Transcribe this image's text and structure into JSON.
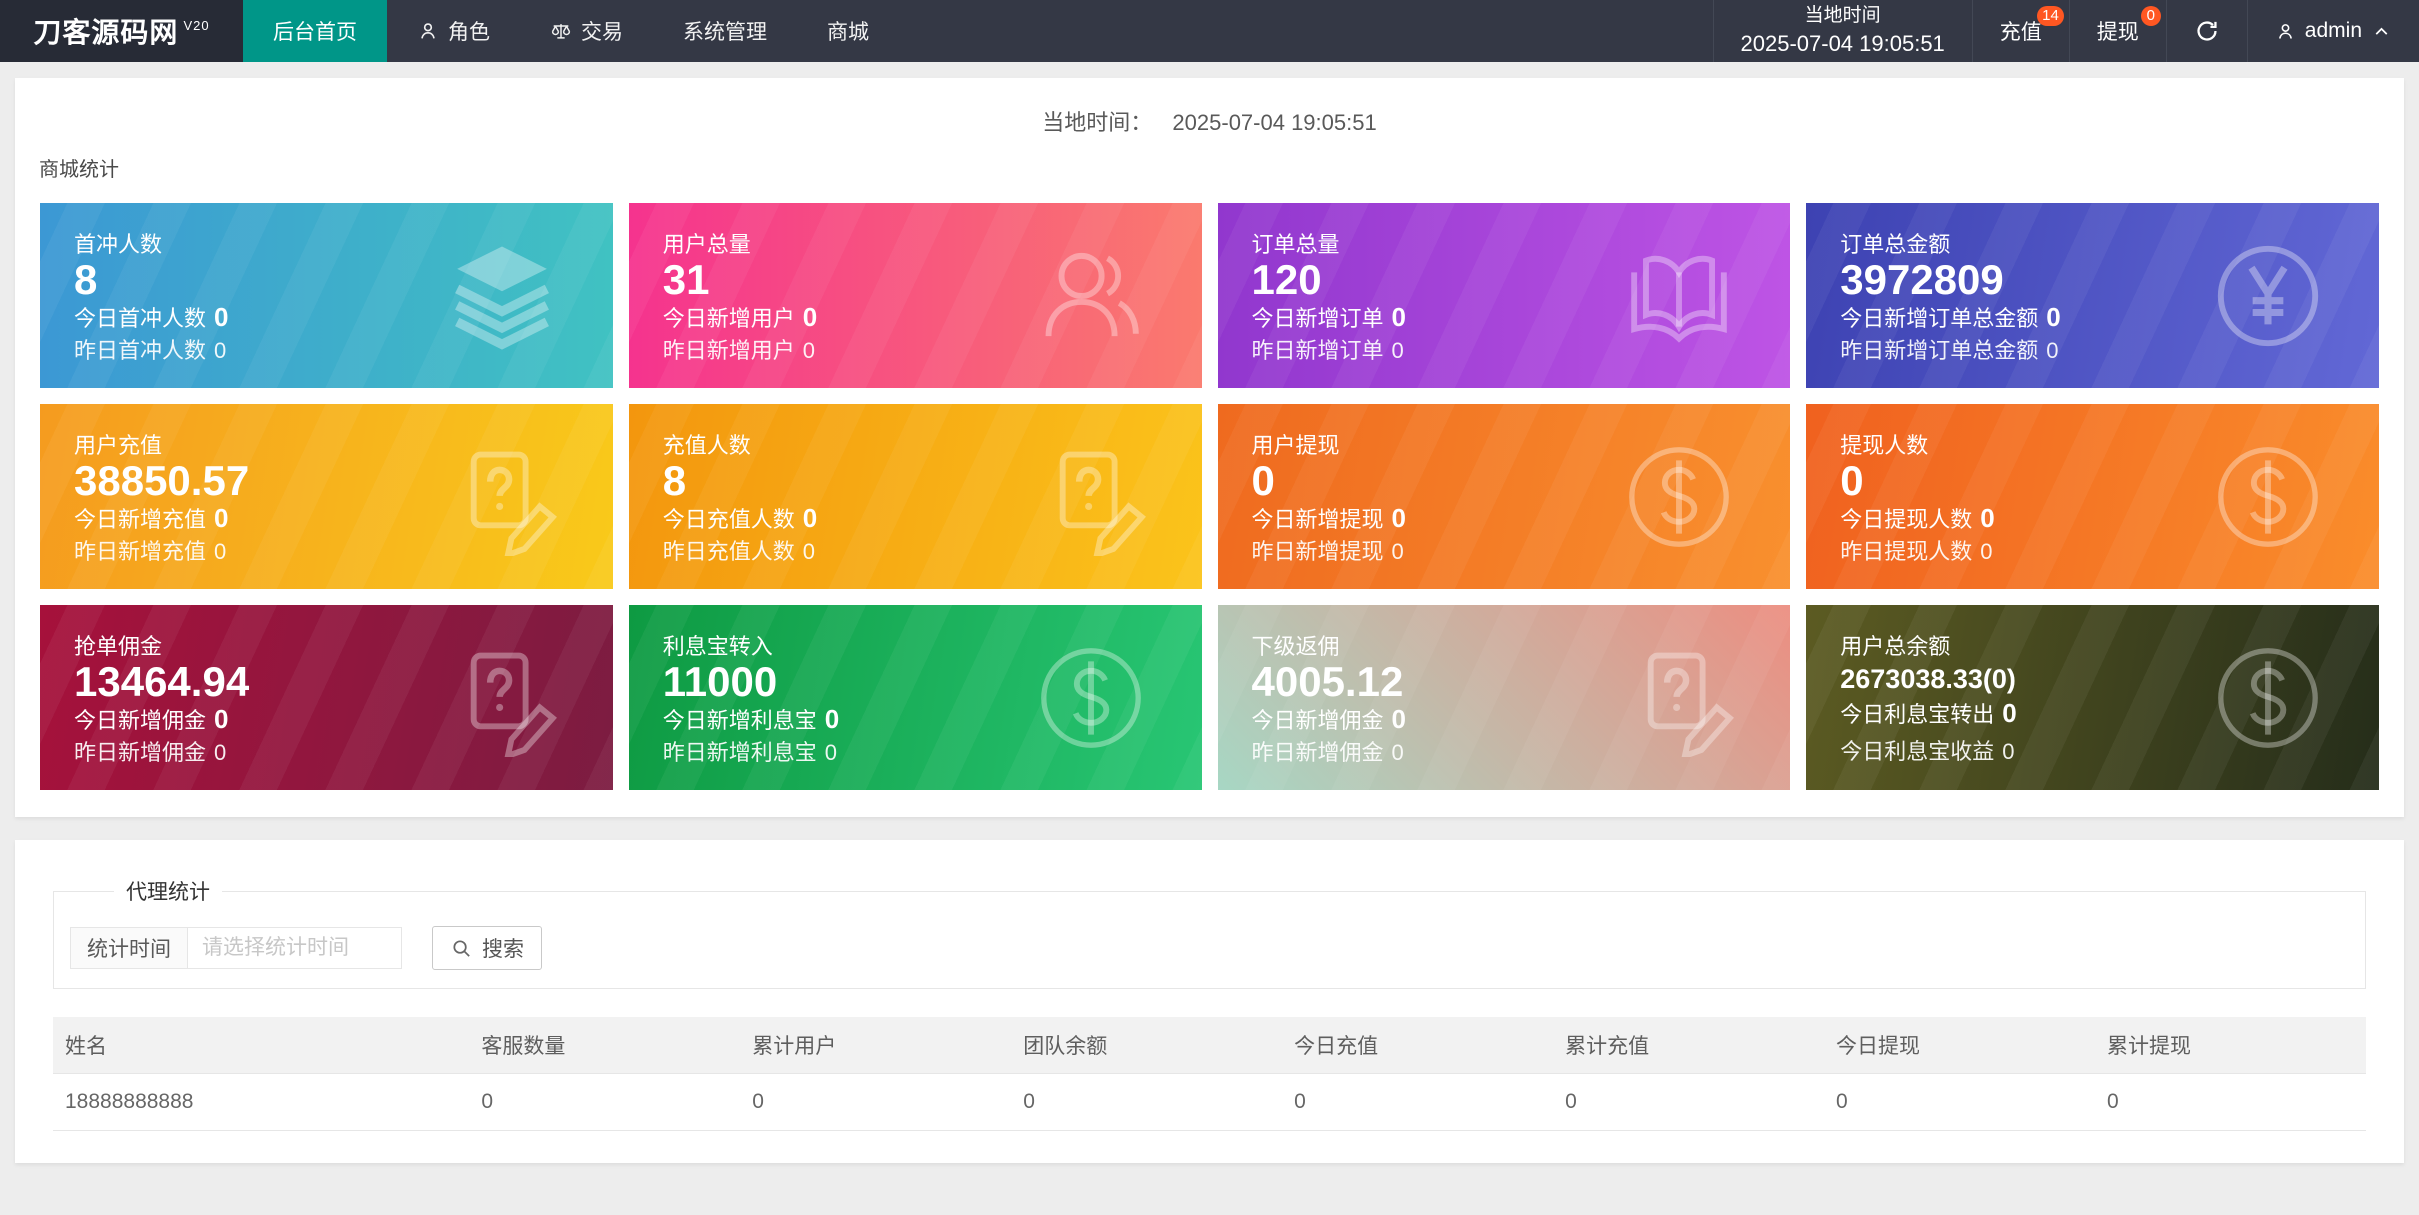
{
  "theme": {
    "accent": "#009688",
    "badge": "#FF5722",
    "navbar_bg": "#343845",
    "logo_bg": "#272B36",
    "page_bg": "#EDEDED"
  },
  "navbar": {
    "logo": "刀客源码网",
    "logo_version": "V20",
    "menu": [
      {
        "label": "后台首页",
        "active": true
      },
      {
        "label": "角色",
        "icon": "person-icon"
      },
      {
        "label": "交易",
        "icon": "scales-icon"
      },
      {
        "label": "系统管理"
      },
      {
        "label": "商城"
      }
    ],
    "local_time_label": "当地时间",
    "local_time_value": "2025-07-04 19:05:51",
    "recharge_label": "充值",
    "recharge_badge": "14",
    "withdraw_label": "提现",
    "withdraw_badge": "0",
    "user": "admin"
  },
  "stats_panel": {
    "time_label": "当地时间：",
    "time_value": "2025-07-04 19:05:51",
    "section_title": "商城统计",
    "cards": [
      {
        "title": "首冲人数",
        "value": "8",
        "today_label": "今日首冲人数",
        "today_value": "0",
        "yesterday_label": "昨日首冲人数",
        "yesterday_value": "0",
        "icon": "layers-icon",
        "gradient": {
          "angle": "90deg",
          "from": "#3C98D4",
          "to": "#40C2C2"
        }
      },
      {
        "title": "用户总量",
        "value": "31",
        "today_label": "今日新增用户",
        "today_value": "0",
        "yesterday_label": "昨日新增用户",
        "yesterday_value": "0",
        "icon": "users-icon",
        "gradient": {
          "angle": "90deg",
          "from": "#F5338E",
          "to": "#FA7A6E"
        }
      },
      {
        "title": "订单总量",
        "value": "120",
        "today_label": "今日新增订单",
        "today_value": "0",
        "yesterday_label": "昨日新增订单",
        "yesterday_value": "0",
        "icon": "book-icon",
        "gradient": {
          "angle": "90deg",
          "from": "#9137CE",
          "to": "#BE54E5"
        }
      },
      {
        "title": "订单总金额",
        "value": "3972809",
        "today_label": "今日新增订单总金额",
        "today_value": "0",
        "yesterday_label": "昨日新增订单总金额",
        "yesterday_value": "0",
        "icon": "yen-circle-icon",
        "gradient": {
          "angle": "100deg",
          "from": "#3D42B2",
          "to": "#6268D6"
        }
      },
      {
        "title": "用户充值",
        "value": "38850.57",
        "today_label": "今日新增充值",
        "today_value": "0",
        "yesterday_label": "昨日新增充值",
        "yesterday_value": "0",
        "icon": "doc-question-icon",
        "gradient": {
          "angle": "100deg",
          "from": "#F59B1F",
          "to": "#F9CA1A"
        }
      },
      {
        "title": "充值人数",
        "value": "8",
        "today_label": "今日充值人数",
        "today_value": "0",
        "yesterday_label": "昨日充值人数",
        "yesterday_value": "0",
        "icon": "doc-question-icon",
        "gradient": {
          "angle": "100deg",
          "from": "#F3960E",
          "to": "#FBC41B"
        }
      },
      {
        "title": "用户提现",
        "value": "0",
        "today_label": "今日新增提现",
        "today_value": "0",
        "yesterday_label": "昨日新增提现",
        "yesterday_value": "0",
        "icon": "dollar-circle-icon",
        "gradient": {
          "angle": "100deg",
          "from": "#EF6A1F",
          "to": "#F9902E"
        }
      },
      {
        "title": "提现人数",
        "value": "0",
        "today_label": "今日提现人数",
        "today_value": "0",
        "yesterday_label": "昨日提现人数",
        "yesterday_value": "0",
        "icon": "dollar-circle-icon",
        "gradient": {
          "angle": "100deg",
          "from": "#F0611F",
          "to": "#FA8D2B"
        }
      },
      {
        "title": "抢单佣金",
        "value": "13464.94",
        "today_label": "今日新增佣金",
        "today_value": "0",
        "yesterday_label": "昨日新增佣金",
        "yesterday_value": "0",
        "icon": "doc-question-icon",
        "gradient": {
          "angle": "100deg",
          "from": "#A6113B",
          "to": "#7C1C41"
        }
      },
      {
        "title": "利息宝转入",
        "value": "11000",
        "today_label": "今日新增利息宝",
        "today_value": "0",
        "yesterday_label": "昨日新增利息宝",
        "yesterday_value": "0",
        "icon": "dollar-circle-icon",
        "gradient": {
          "angle": "100deg",
          "from": "#0E9A42",
          "to": "#28C674"
        }
      },
      {
        "title": "下级返佣",
        "value": "4005.12",
        "today_label": "今日新增佣金",
        "today_value": "0",
        "yesterday_label": "昨日新增佣金",
        "yesterday_value": "0",
        "icon": "doc-question-icon",
        "gradient": {
          "angle": "45deg",
          "from": "#A7D7C4",
          "to": "#EC8E81"
        }
      },
      {
        "title": "用户总余额",
        "value": "2673038.33(0)",
        "small_value": true,
        "today_label": "今日利息宝转出",
        "today_value": "0",
        "yesterday_label": "今日利息宝收益",
        "yesterday_value": "0",
        "icon": "dollar-circle-icon",
        "gradient": {
          "angle": "100deg",
          "from": "#5C5B22",
          "to": "#252D1A"
        }
      }
    ]
  },
  "agent_panel": {
    "legend": "代理统计",
    "filter_label": "统计时间",
    "filter_placeholder": "请选择统计时间",
    "search_label": "搜索",
    "table": {
      "headers": [
        "姓名",
        "客服数量",
        "累计用户",
        "团队余额",
        "今日充值",
        "累计充值",
        "今日提现",
        "累计提现"
      ],
      "rows": [
        [
          "18888888888",
          "0",
          "0",
          "0",
          "0",
          "0",
          "0",
          "0"
        ]
      ]
    }
  }
}
